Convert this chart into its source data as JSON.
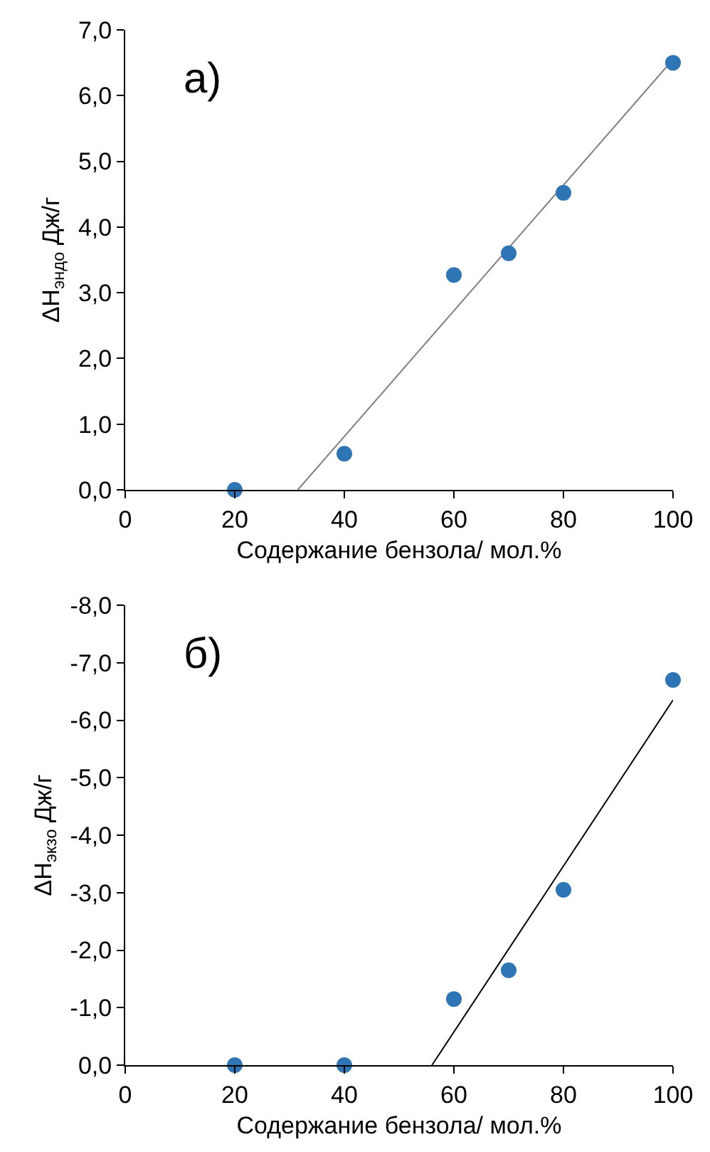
{
  "chart_data": [
    {
      "type": "scatter",
      "annotations": [
        "а)"
      ],
      "xlabel": "Содержание бензола/ мол.%",
      "ylabel": "ΔH$_{эндо}$ Дж/г",
      "xlim": [
        0,
        100
      ],
      "xticks": [
        0,
        20,
        40,
        60,
        80,
        100
      ],
      "ylim": [
        0,
        7
      ],
      "yticks": [
        {
          "value": 0,
          "label": "0,0"
        },
        {
          "value": 1,
          "label": "1,0"
        },
        {
          "value": 2,
          "label": "2,0"
        },
        {
          "value": 3,
          "label": "3,0"
        },
        {
          "value": 4,
          "label": "4,0"
        },
        {
          "value": 5,
          "label": "5,0"
        },
        {
          "value": 6,
          "label": "6,0"
        },
        {
          "value": 7,
          "label": "7,0"
        }
      ],
      "grid": false,
      "series": [
        {
          "type": "line",
          "color": "#808080",
          "marker": "none",
          "x": [
            31.5,
            100
          ],
          "values": [
            0,
            6.55
          ]
        },
        {
          "color": "#2e75b6",
          "marker": "circle",
          "x": [
            20,
            40,
            60,
            70,
            80,
            100
          ],
          "values": [
            0,
            0.55,
            3.27,
            3.6,
            4.52,
            6.5
          ]
        }
      ]
    },
    {
      "type": "scatter",
      "annotations": [
        "б)"
      ],
      "xlabel": "Содержание бензола/ мол.%",
      "ylabel": "ΔH$_{экзо}$ Дж/г",
      "xlim": [
        0,
        100
      ],
      "xticks": [
        0,
        20,
        40,
        60,
        80,
        100
      ],
      "ylim": [
        0,
        -8
      ],
      "yticks": [
        {
          "value": 0,
          "label": "0,0"
        },
        {
          "value": -1,
          "label": "-1,0"
        },
        {
          "value": -2,
          "label": "-2,0"
        },
        {
          "value": -3,
          "label": "-3,0"
        },
        {
          "value": -4,
          "label": "-4,0"
        },
        {
          "value": -5,
          "label": "-5,0"
        },
        {
          "value": -6,
          "label": "-6,0"
        },
        {
          "value": -7,
          "label": "-7,0"
        },
        {
          "value": -8,
          "label": "-8,0"
        }
      ],
      "grid": false,
      "series": [
        {
          "type": "line",
          "color": "#000000",
          "marker": "none",
          "x": [
            56,
            100
          ],
          "values": [
            0,
            -6.35
          ]
        },
        {
          "color": "#2e75b6",
          "marker": "circle",
          "x": [
            20,
            40,
            60,
            70,
            80,
            100
          ],
          "values": [
            0,
            0,
            -1.15,
            -1.65,
            -3.05,
            -6.7
          ]
        }
      ]
    }
  ]
}
